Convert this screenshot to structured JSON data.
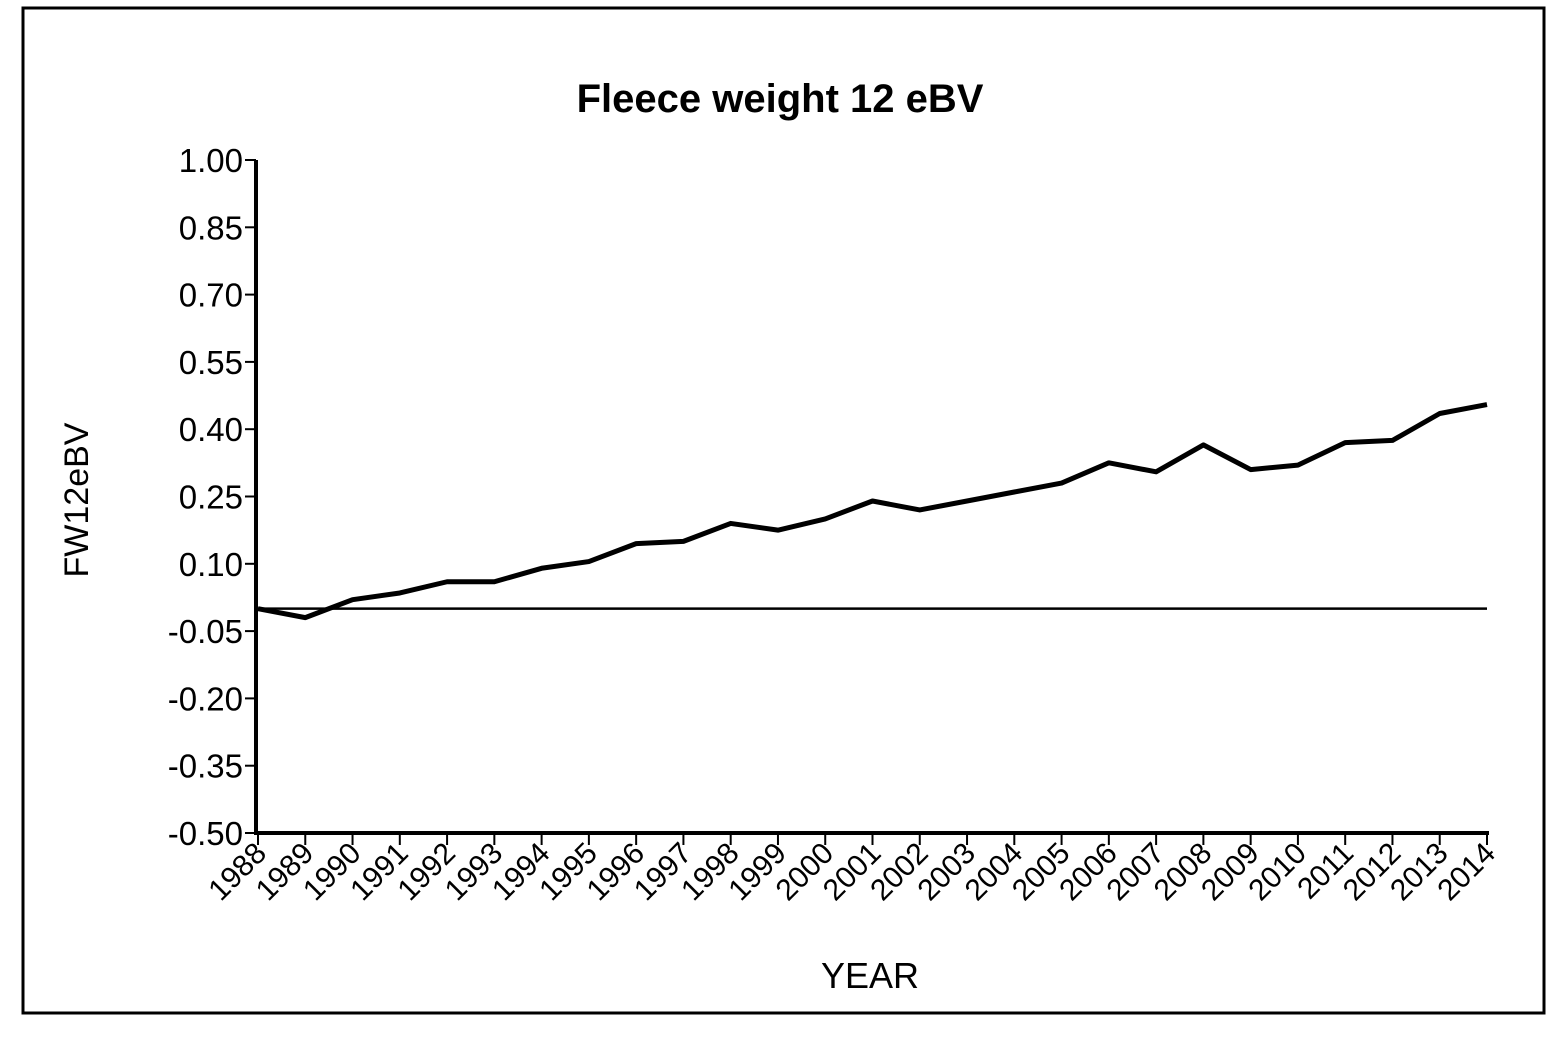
{
  "chart_data": {
    "type": "line",
    "title": "Fleece weight 12 eBV",
    "x_label": "YEAR",
    "y_label": "FW12eBV",
    "categories": [
      "1988",
      "1989",
      "1990",
      "1991",
      "1992",
      "1993",
      "1994",
      "1995",
      "1996",
      "1997",
      "1998",
      "1999",
      "2000",
      "2001",
      "2002",
      "2003",
      "2004",
      "2005",
      "2006",
      "2007",
      "2008",
      "2009",
      "2010",
      "2011",
      "2012",
      "2013",
      "2014"
    ],
    "series": [
      {
        "name": "FW12eBV",
        "color": "#000000",
        "values": [
          0.0,
          -0.02,
          0.02,
          0.035,
          0.06,
          0.06,
          0.09,
          0.105,
          0.145,
          0.15,
          0.19,
          0.175,
          0.2,
          0.24,
          0.22,
          0.24,
          0.26,
          0.28,
          0.325,
          0.305,
          0.365,
          0.31,
          0.32,
          0.37,
          0.375,
          0.435,
          0.455
        ]
      }
    ],
    "reference_line": 0,
    "ylim": [
      -0.5,
      1.0
    ],
    "yticks": [
      {
        "value": 1.0,
        "label": "1.00"
      },
      0.85,
      {
        "value": 0.7,
        "label": "0.70"
      },
      0.55,
      {
        "value": 0.4,
        "label": "0.40"
      },
      0.25,
      {
        "value": 0.1,
        "label": "0.10"
      },
      -0.05,
      {
        "value": -0.2,
        "label": "-0.20"
      },
      -0.35,
      {
        "value": -0.5,
        "label": "-0.50"
      }
    ],
    "grid": false
  }
}
